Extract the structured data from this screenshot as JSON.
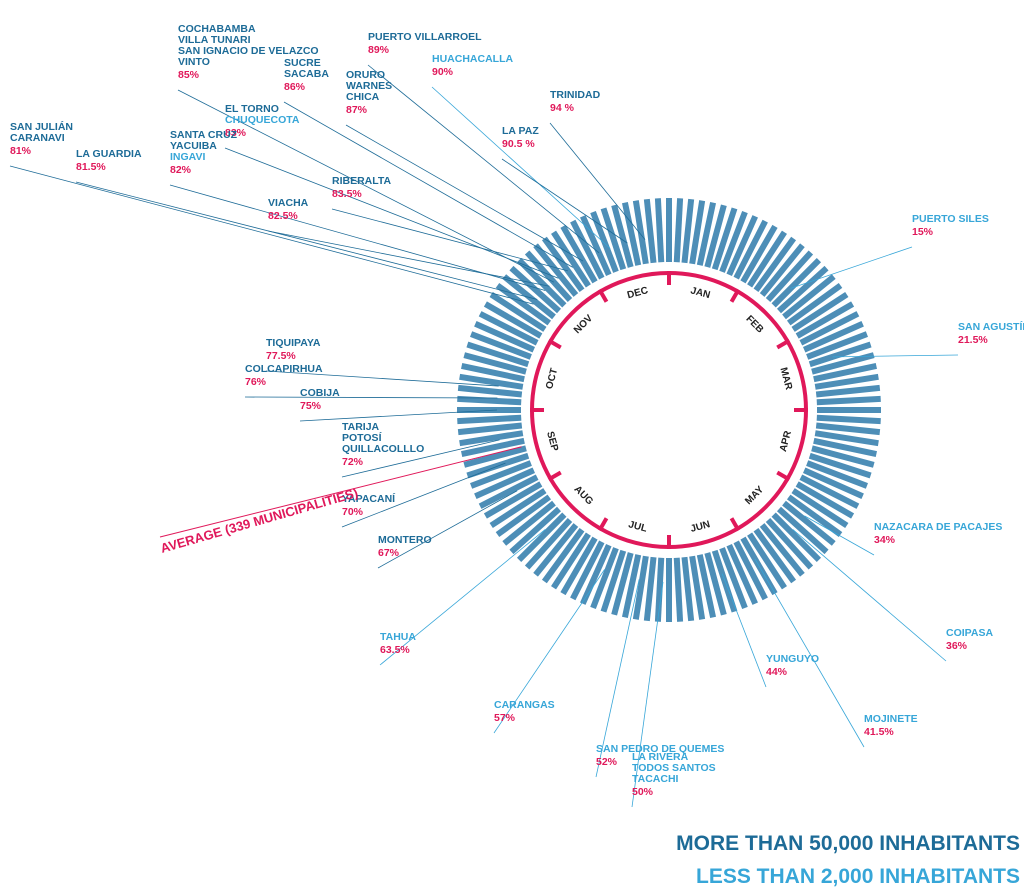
{
  "chart_data": {
    "type": "radial-bar",
    "months": [
      "JAN",
      "FEB",
      "MAR",
      "APR",
      "MAY",
      "JUN",
      "JUL",
      "AUG",
      "SEP",
      "OCT",
      "NOV",
      "DEC"
    ],
    "average_label": "AVERAGE (339 MUNICIPALITIES)",
    "average_value": 71,
    "colors": {
      "bars": "#4d8eb7",
      "ring": "#e0185a",
      "large": "#1d6b97",
      "small": "#37a6d8",
      "pct": "#e0185a"
    },
    "callouts": [
      {
        "names": [
          "COCHABAMBA",
          "VILLA TUNARI",
          "SAN IGNACIO DE VELAZCO",
          "VINTO"
        ],
        "pct": "85%",
        "size": "large",
        "percent": 85
      },
      {
        "names": [
          "PUERTO VILLARROEL"
        ],
        "pct": "89%",
        "size": "large",
        "percent": 89
      },
      {
        "names": [
          "HUACHACALLA"
        ],
        "pct": "90%",
        "size": "small",
        "percent": 90
      },
      {
        "names": [
          "SUCRE",
          "SACABA"
        ],
        "pct": "86%",
        "size": "large",
        "percent": 86
      },
      {
        "names": [
          "ORURO",
          "WARNES",
          "CHICA"
        ],
        "pct": "87%",
        "size": "large",
        "percent": 87
      },
      {
        "names": [
          "TRINIDAD"
        ],
        "pct": "94 %",
        "size": "large",
        "percent": 94
      },
      {
        "names": [
          "LA PAZ"
        ],
        "pct": "90.5 %",
        "size": "large",
        "percent": 90.5
      },
      {
        "names": [
          "EL TORNO",
          "CHUQUECOTA"
        ],
        "pct": "83%",
        "size": "mixed",
        "percent": 83
      },
      {
        "names": [
          "SAN JULIÁN",
          "CARANAVI"
        ],
        "pct": "81%",
        "size": "large",
        "percent": 81
      },
      {
        "names": [
          "LA GUARDIA"
        ],
        "pct": "81.5%",
        "size": "large",
        "percent": 81.5
      },
      {
        "names": [
          "SANTA CRUZ",
          "YACUIBA",
          "INGAVI"
        ],
        "pct": "82%",
        "size": "mixed",
        "percent": 82
      },
      {
        "names": [
          "RIBERALTA"
        ],
        "pct": "83.5%",
        "size": "large",
        "percent": 83.5
      },
      {
        "names": [
          "VIACHA"
        ],
        "pct": "82.5%",
        "size": "large",
        "percent": 82.5
      },
      {
        "names": [
          "PUERTO SILES"
        ],
        "pct": "15%",
        "size": "small",
        "percent": 15
      },
      {
        "names": [
          "SAN  AGUSTÍN"
        ],
        "pct": "21.5%",
        "size": "small",
        "percent": 21.5
      },
      {
        "names": [
          "TIQUIPAYA"
        ],
        "pct": "77.5%",
        "size": "large",
        "percent": 77.5
      },
      {
        "names": [
          "COLCAPIRHUA"
        ],
        "pct": "76%",
        "size": "large",
        "percent": 76
      },
      {
        "names": [
          "COBIJA"
        ],
        "pct": "75%",
        "size": "large",
        "percent": 75
      },
      {
        "names": [
          "TARIJA",
          "POTOSÍ",
          "QUILLACOLLLO"
        ],
        "pct": "72%",
        "size": "large",
        "percent": 72
      },
      {
        "names": [
          "YAPACANÍ"
        ],
        "pct": "70%",
        "size": "large",
        "percent": 70
      },
      {
        "names": [
          "MONTERO"
        ],
        "pct": "67%",
        "size": "large",
        "percent": 67
      },
      {
        "names": [
          "NAZACARA DE PACAJES"
        ],
        "pct": "34%",
        "size": "small",
        "percent": 34
      },
      {
        "names": [
          "COIPASA"
        ],
        "pct": "36%",
        "size": "small",
        "percent": 36
      },
      {
        "names": [
          "TAHUA"
        ],
        "pct": "63.5%",
        "size": "small",
        "percent": 63.5
      },
      {
        "names": [
          "YUNGUYO"
        ],
        "pct": "44%",
        "size": "small",
        "percent": 44
      },
      {
        "names": [
          "CARANGAS"
        ],
        "pct": "57%",
        "size": "small",
        "percent": 57
      },
      {
        "names": [
          "MOJINETE"
        ],
        "pct": "41.5%",
        "size": "small",
        "percent": 41.5
      },
      {
        "names": [
          "SAN PEDRO DE QUEMES"
        ],
        "pct": "52%",
        "size": "small",
        "percent": 52
      },
      {
        "names": [
          "LA RIVERA",
          "TODOS SANTOS",
          "TACACHI"
        ],
        "pct": "50%",
        "size": "small",
        "percent": 50
      }
    ]
  },
  "legend": {
    "large": "MORE THAN 50,000 INHABITANTS",
    "small": "LESS THAN 2,000 INHABITANTS"
  }
}
